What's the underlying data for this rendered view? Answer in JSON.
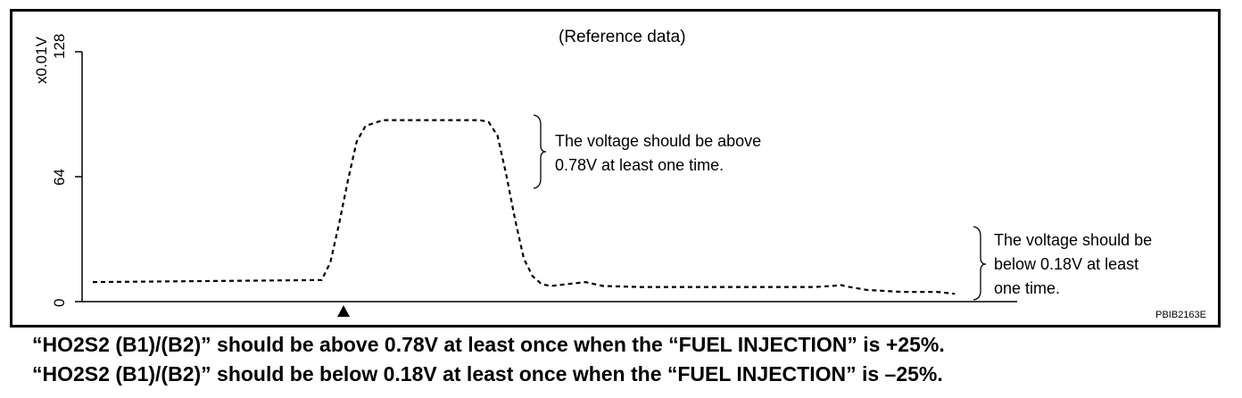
{
  "chart_data": {
    "type": "line",
    "title": "(Reference data)",
    "ylabel": "x0.01V",
    "yticks": [
      "0",
      "64",
      "128"
    ],
    "ylim": [
      0,
      128
    ],
    "xlim": [
      0,
      100
    ],
    "marker_x": 28.5,
    "series": [
      {
        "x": [
          0,
          25,
          26,
          27,
          28,
          29,
          30,
          31,
          33,
          44,
          45,
          46,
          47,
          48,
          49,
          50,
          51,
          52,
          54,
          56,
          57,
          58,
          62,
          66,
          70,
          74,
          78,
          82,
          84,
          85,
          86,
          88,
          90,
          92,
          94,
          96,
          98
        ],
        "values": [
          10,
          11,
          11,
          20,
          40,
          62,
          82,
          90,
          93,
          93,
          92,
          85,
          65,
          42,
          22,
          13,
          9,
          8,
          9,
          10,
          9,
          8,
          7.5,
          7.5,
          7.5,
          7.5,
          7.5,
          7.5,
          8,
          8.5,
          7.5,
          6,
          5.5,
          5,
          5,
          5,
          4
        ]
      }
    ],
    "annotations": [
      {
        "lines": [
          "The voltage should be above",
          "0.78V at least one time."
        ]
      },
      {
        "lines": [
          "The voltage should be",
          "below 0.18V at least",
          "one time."
        ]
      }
    ],
    "grid": false
  },
  "figure_code": "PBIB2163E",
  "captions": [
    "“HO2S2 (B1)/(B2)” should be above 0.78V at least once when the “FUEL INJECTION” is +25%.",
    "“HO2S2 (B1)/(B2)” should be below 0.18V at least once when the “FUEL INJECTION” is –25%."
  ]
}
